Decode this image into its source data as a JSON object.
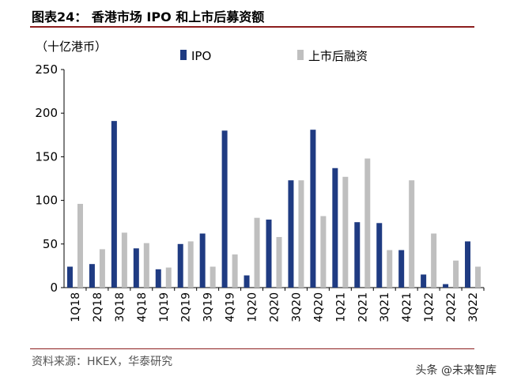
{
  "header": {
    "title": "图表24：  香港市场 IPO 和上市后募资额"
  },
  "footer": {
    "source": "资料来源：HKEX，华泰研究",
    "watermark": "头条 @未来智库"
  },
  "chart_data": {
    "type": "bar",
    "title": "图表24：  香港市场 IPO 和上市后募资额",
    "ylabel": "（十亿港币）",
    "ylim": [
      0,
      250
    ],
    "yticks": [
      0,
      50,
      100,
      150,
      200,
      250
    ],
    "legend_position": "top",
    "categories": [
      "1Q18",
      "2Q18",
      "3Q18",
      "4Q18",
      "1Q19",
      "2Q19",
      "3Q19",
      "4Q19",
      "1Q20",
      "2Q20",
      "3Q20",
      "4Q20",
      "1Q21",
      "2Q21",
      "3Q21",
      "4Q21",
      "1Q22",
      "2Q22",
      "3Q22"
    ],
    "series": [
      {
        "name": "IPO",
        "color": "#1f3b82",
        "values": [
          24,
          27,
          191,
          45,
          21,
          50,
          62,
          180,
          14,
          78,
          123,
          181,
          137,
          75,
          74,
          43,
          15,
          4,
          53
        ]
      },
      {
        "name": "上市后融资",
        "color": "#bfbfbf",
        "values": [
          96,
          44,
          63,
          51,
          23,
          53,
          24,
          38,
          80,
          58,
          123,
          82,
          127,
          148,
          43,
          123,
          62,
          31,
          24
        ]
      }
    ]
  }
}
